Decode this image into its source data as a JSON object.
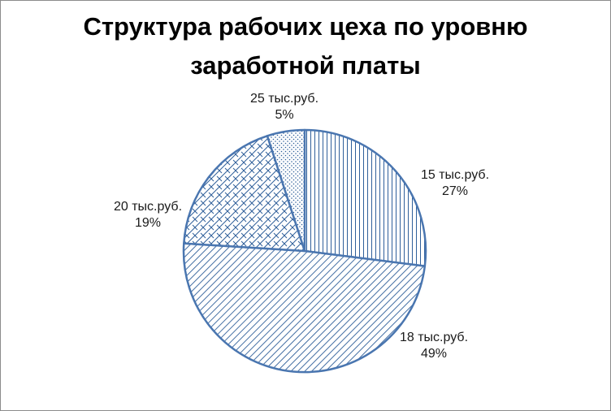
{
  "chart_data": {
    "type": "pie",
    "title_lines": [
      "Структура рабочих цеха по уровню",
      "заработной платы"
    ],
    "categories": [
      "15 тыс.руб.",
      "18 тыс.руб.",
      "20 тыс.руб.",
      "25 тыс.руб."
    ],
    "values": [
      27,
      49,
      19,
      5
    ],
    "percent_labels": [
      "27%",
      "49%",
      "19%",
      "5%"
    ],
    "start_angle_deg": 0,
    "direction": "clockwise",
    "legend": "none",
    "stroke_color": "#4a76b0",
    "pattern_color": "#2f5f9a",
    "patterns": [
      "vertical-lines",
      "diagonal-lines",
      "weave",
      "dots"
    ]
  }
}
